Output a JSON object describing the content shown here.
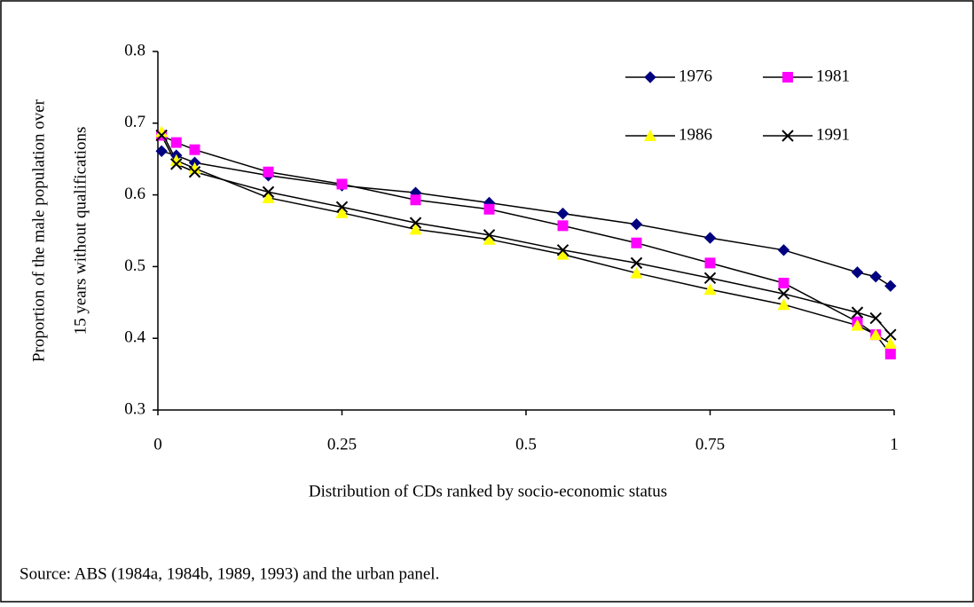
{
  "chart_data": {
    "type": "line",
    "ylabel": [
      "Proportion of the male population over",
      "15 years without qualifications"
    ],
    "xlabel": "Distribution of CDs ranked by socio-economic status",
    "source": "Source:  ABS (1984a, 1984b, 1989, 1993) and the urban panel.",
    "x": [
      0.005,
      0.025,
      0.05,
      0.15,
      0.25,
      0.35,
      0.45,
      0.55,
      0.65,
      0.75,
      0.85,
      0.95,
      0.975,
      0.995
    ],
    "series": [
      {
        "name": "1976",
        "color": "#000080",
        "marker": "diamond",
        "values": [
          0.661,
          0.655,
          0.645,
          0.627,
          0.613,
          0.603,
          0.589,
          0.574,
          0.559,
          0.54,
          0.523,
          0.492,
          0.486,
          0.473
        ]
      },
      {
        "name": "1981",
        "color": "#ff00ff",
        "marker": "square",
        "values": [
          0.683,
          0.673,
          0.663,
          0.632,
          0.615,
          0.593,
          0.58,
          0.557,
          0.533,
          0.505,
          0.477,
          0.423,
          0.405,
          0.378
        ]
      },
      {
        "name": "1986",
        "color": "#ffff00",
        "marker": "triangle",
        "values": [
          0.688,
          0.648,
          0.637,
          0.596,
          0.575,
          0.552,
          0.538,
          0.517,
          0.491,
          0.468,
          0.447,
          0.418,
          0.405,
          0.393
        ]
      },
      {
        "name": "1991",
        "color": "#000000",
        "marker": "x",
        "values": [
          0.683,
          0.643,
          0.632,
          0.604,
          0.583,
          0.561,
          0.544,
          0.523,
          0.505,
          0.484,
          0.462,
          0.436,
          0.428,
          0.405
        ]
      }
    ],
    "xlim": [
      0,
      1
    ],
    "xticks": [
      0,
      0.25,
      0.5,
      0.75,
      1
    ],
    "ylim": [
      0.3,
      0.8
    ],
    "yticks": [
      0.3,
      0.4,
      0.5,
      0.6,
      0.7,
      0.8
    ]
  }
}
